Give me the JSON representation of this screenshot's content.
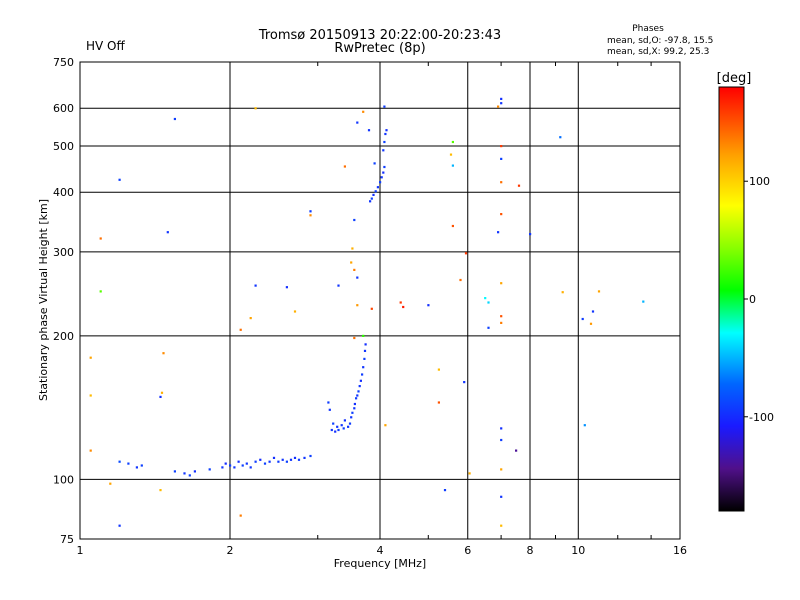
{
  "chart_data": {
    "type": "scatter",
    "title": "Tromsø 20150913 20:22:00-20:23:43",
    "subtitle": "RwPretec (8p)",
    "status_label": "HV Off",
    "status_color": "#cc0000",
    "phases": {
      "heading": "Phases",
      "line_o": "mean, sd,O: -97.8, 15.5",
      "line_x": "mean, sd,X:  99.2, 25.3"
    },
    "xlabel": "Frequency [MHz]",
    "ylabel": "Stationary phase Virtual Height [km]",
    "x_scale": "log",
    "y_scale": "log",
    "xlim": [
      1,
      16
    ],
    "ylim": [
      75,
      750
    ],
    "x_ticks": [
      {
        "v": 1,
        "label": "1"
      },
      {
        "v": 2,
        "label": "2"
      },
      {
        "v": 4,
        "label": "4"
      },
      {
        "v": 6,
        "label": "6"
      },
      {
        "v": 8,
        "label": "8"
      },
      {
        "v": 10,
        "label": "10"
      },
      {
        "v": 16,
        "label": "16"
      }
    ],
    "y_ticks": [
      {
        "v": 75,
        "label": "75"
      },
      {
        "v": 100,
        "label": "100"
      },
      {
        "v": 200,
        "label": "200"
      },
      {
        "v": 300,
        "label": "300"
      },
      {
        "v": 400,
        "label": "400"
      },
      {
        "v": 500,
        "label": "500"
      },
      {
        "v": 600,
        "label": "600"
      },
      {
        "v": 750,
        "label": "750"
      }
    ],
    "grid": true,
    "colorbar": {
      "label": "[deg]",
      "range": [
        -180,
        180
      ],
      "ticks": [
        {
          "v": 100,
          "label": "100"
        },
        {
          "v": 0,
          "label": "0"
        },
        {
          "v": -100,
          "label": "-100"
        }
      ]
    },
    "points": [
      {
        "f": 1.2,
        "h": 109,
        "p": -85
      },
      {
        "f": 1.25,
        "h": 108,
        "p": -90
      },
      {
        "f": 1.3,
        "h": 106,
        "p": -95
      },
      {
        "f": 1.55,
        "h": 104,
        "p": -90
      },
      {
        "f": 1.62,
        "h": 103,
        "p": -95
      },
      {
        "f": 1.66,
        "h": 102,
        "p": -90
      },
      {
        "f": 1.7,
        "h": 104,
        "p": -98
      },
      {
        "f": 1.82,
        "h": 105,
        "p": -90
      },
      {
        "f": 1.93,
        "h": 106,
        "p": -95
      },
      {
        "f": 1.96,
        "h": 108,
        "p": -100
      },
      {
        "f": 2.0,
        "h": 107,
        "p": -92
      },
      {
        "f": 2.04,
        "h": 106,
        "p": -95
      },
      {
        "f": 2.08,
        "h": 109,
        "p": -98
      },
      {
        "f": 2.12,
        "h": 107,
        "p": -90
      },
      {
        "f": 2.16,
        "h": 108,
        "p": -95
      },
      {
        "f": 2.2,
        "h": 106,
        "p": -95
      },
      {
        "f": 2.25,
        "h": 109,
        "p": -92
      },
      {
        "f": 2.3,
        "h": 110,
        "p": -100
      },
      {
        "f": 2.35,
        "h": 108,
        "p": -90
      },
      {
        "f": 2.4,
        "h": 109,
        "p": -95
      },
      {
        "f": 2.45,
        "h": 111,
        "p": -98
      },
      {
        "f": 2.5,
        "h": 109,
        "p": -92
      },
      {
        "f": 2.55,
        "h": 110,
        "p": -95
      },
      {
        "f": 2.6,
        "h": 109,
        "p": -90
      },
      {
        "f": 2.65,
        "h": 110,
        "p": -95
      },
      {
        "f": 2.7,
        "h": 111,
        "p": -98
      },
      {
        "f": 2.75,
        "h": 110,
        "p": -92
      },
      {
        "f": 2.82,
        "h": 111,
        "p": -95
      },
      {
        "f": 2.9,
        "h": 112,
        "p": -90
      },
      {
        "f": 3.2,
        "h": 127,
        "p": -95
      },
      {
        "f": 3.22,
        "h": 131,
        "p": -90
      },
      {
        "f": 3.25,
        "h": 126,
        "p": -98
      },
      {
        "f": 3.28,
        "h": 129,
        "p": -95
      },
      {
        "f": 3.3,
        "h": 127,
        "p": -92
      },
      {
        "f": 3.35,
        "h": 130,
        "p": -95
      },
      {
        "f": 3.38,
        "h": 128,
        "p": -90
      },
      {
        "f": 3.4,
        "h": 133,
        "p": -98
      },
      {
        "f": 3.45,
        "h": 129,
        "p": -95
      },
      {
        "f": 3.48,
        "h": 131,
        "p": -92
      },
      {
        "f": 3.5,
        "h": 135,
        "p": -95
      },
      {
        "f": 3.52,
        "h": 138,
        "p": -90
      },
      {
        "f": 3.55,
        "h": 141,
        "p": -95
      },
      {
        "f": 3.56,
        "h": 144,
        "p": -98
      },
      {
        "f": 3.58,
        "h": 148,
        "p": -92
      },
      {
        "f": 3.6,
        "h": 150,
        "p": -95
      },
      {
        "f": 3.62,
        "h": 153,
        "p": -90
      },
      {
        "f": 3.64,
        "h": 157,
        "p": -95
      },
      {
        "f": 3.66,
        "h": 161,
        "p": -98
      },
      {
        "f": 3.68,
        "h": 166,
        "p": -92
      },
      {
        "f": 3.7,
        "h": 172,
        "p": -95
      },
      {
        "f": 3.72,
        "h": 179,
        "p": -90
      },
      {
        "f": 3.73,
        "h": 186,
        "p": -95
      },
      {
        "f": 3.74,
        "h": 192,
        "p": -98
      },
      {
        "f": 3.17,
        "h": 140,
        "p": -95
      },
      {
        "f": 3.15,
        "h": 145,
        "p": -92
      },
      {
        "f": 3.82,
        "h": 383,
        "p": -95
      },
      {
        "f": 3.85,
        "h": 388,
        "p": -90
      },
      {
        "f": 3.88,
        "h": 395,
        "p": -98
      },
      {
        "f": 3.92,
        "h": 402,
        "p": -92
      },
      {
        "f": 3.96,
        "h": 410,
        "p": -95
      },
      {
        "f": 4.0,
        "h": 420,
        "p": -90
      },
      {
        "f": 4.03,
        "h": 430,
        "p": -95
      },
      {
        "f": 4.06,
        "h": 440,
        "p": -98
      },
      {
        "f": 4.08,
        "h": 452,
        "p": -92
      },
      {
        "f": 4.06,
        "h": 490,
        "p": -95
      },
      {
        "f": 4.08,
        "h": 510,
        "p": -90
      },
      {
        "f": 4.1,
        "h": 530,
        "p": -95
      },
      {
        "f": 4.12,
        "h": 540,
        "p": -98
      },
      {
        "f": 4.08,
        "h": 605,
        "p": -92
      },
      {
        "f": 3.8,
        "h": 540,
        "p": -95
      },
      {
        "f": 3.9,
        "h": 460,
        "p": -90
      },
      {
        "f": 3.6,
        "h": 560,
        "p": -95
      },
      {
        "f": 1.2,
        "h": 80,
        "p": -95
      },
      {
        "f": 1.33,
        "h": 107,
        "p": -90
      },
      {
        "f": 1.45,
        "h": 149,
        "p": -98
      },
      {
        "f": 1.55,
        "h": 570,
        "p": -92
      },
      {
        "f": 1.5,
        "h": 330,
        "p": -95
      },
      {
        "f": 1.2,
        "h": 425,
        "p": -90
      },
      {
        "f": 2.25,
        "h": 255,
        "p": -95
      },
      {
        "f": 2.6,
        "h": 253,
        "p": -98
      },
      {
        "f": 2.9,
        "h": 365,
        "p": -92
      },
      {
        "f": 3.3,
        "h": 255,
        "p": -95
      },
      {
        "f": 3.55,
        "h": 350,
        "p": -90
      },
      {
        "f": 3.6,
        "h": 265,
        "p": -95
      },
      {
        "f": 5.0,
        "h": 232,
        "p": -98
      },
      {
        "f": 5.4,
        "h": 95,
        "p": -92
      },
      {
        "f": 5.9,
        "h": 160,
        "p": -95
      },
      {
        "f": 6.6,
        "h": 208,
        "p": -90
      },
      {
        "f": 6.9,
        "h": 330,
        "p": -95
      },
      {
        "f": 7.0,
        "h": 128,
        "p": -98
      },
      {
        "f": 7.0,
        "h": 121,
        "p": -92
      },
      {
        "f": 7.0,
        "h": 92,
        "p": -95
      },
      {
        "f": 7.0,
        "h": 470,
        "p": -90
      },
      {
        "f": 7.0,
        "h": 615,
        "p": -95
      },
      {
        "f": 7.0,
        "h": 628,
        "p": -98
      },
      {
        "f": 7.5,
        "h": 115,
        "p": -140
      },
      {
        "f": 7.6,
        "h": 413,
        "p": 160
      },
      {
        "f": 8.0,
        "h": 327,
        "p": -95
      },
      {
        "f": 9.2,
        "h": 522,
        "p": -70
      },
      {
        "f": 10.3,
        "h": 130,
        "p": -60
      },
      {
        "f": 10.2,
        "h": 217,
        "p": -92
      },
      {
        "f": 10.7,
        "h": 225,
        "p": -95
      },
      {
        "f": 6.6,
        "h": 235,
        "p": -40
      },
      {
        "f": 13.5,
        "h": 236,
        "p": -50
      },
      {
        "f": 1.05,
        "h": 180,
        "p": 120
      },
      {
        "f": 1.05,
        "h": 150,
        "p": 110
      },
      {
        "f": 1.05,
        "h": 115,
        "p": 130
      },
      {
        "f": 1.1,
        "h": 320,
        "p": 140
      },
      {
        "f": 1.15,
        "h": 98,
        "p": 120
      },
      {
        "f": 1.45,
        "h": 95,
        "p": 110
      },
      {
        "f": 1.47,
        "h": 184,
        "p": 130
      },
      {
        "f": 1.46,
        "h": 152,
        "p": 115
      },
      {
        "f": 2.1,
        "h": 206,
        "p": 140
      },
      {
        "f": 2.2,
        "h": 218,
        "p": 120
      },
      {
        "f": 2.25,
        "h": 600,
        "p": 110
      },
      {
        "f": 2.1,
        "h": 84,
        "p": 135
      },
      {
        "f": 2.7,
        "h": 225,
        "p": 115
      },
      {
        "f": 2.9,
        "h": 358,
        "p": 130
      },
      {
        "f": 3.4,
        "h": 453,
        "p": 140
      },
      {
        "f": 3.5,
        "h": 285,
        "p": 120
      },
      {
        "f": 3.52,
        "h": 305,
        "p": 115
      },
      {
        "f": 3.55,
        "h": 275,
        "p": 135
      },
      {
        "f": 3.6,
        "h": 232,
        "p": 125
      },
      {
        "f": 3.55,
        "h": 198,
        "p": 140
      },
      {
        "f": 3.7,
        "h": 590,
        "p": 130
      },
      {
        "f": 3.85,
        "h": 228,
        "p": 155
      },
      {
        "f": 4.1,
        "h": 130,
        "p": 120
      },
      {
        "f": 4.4,
        "h": 235,
        "p": 160
      },
      {
        "f": 4.45,
        "h": 230,
        "p": 170
      },
      {
        "f": 5.25,
        "h": 145,
        "p": 150
      },
      {
        "f": 5.25,
        "h": 170,
        "p": 110
      },
      {
        "f": 5.55,
        "h": 480,
        "p": 110
      },
      {
        "f": 5.6,
        "h": 340,
        "p": 150
      },
      {
        "f": 5.8,
        "h": 262,
        "p": 140
      },
      {
        "f": 5.95,
        "h": 298,
        "p": 160
      },
      {
        "f": 6.05,
        "h": 103,
        "p": 115
      },
      {
        "f": 6.9,
        "h": 605,
        "p": 130
      },
      {
        "f": 7.0,
        "h": 500,
        "p": 160
      },
      {
        "f": 7.0,
        "h": 420,
        "p": 140
      },
      {
        "f": 7.0,
        "h": 360,
        "p": 150
      },
      {
        "f": 7.0,
        "h": 258,
        "p": 120
      },
      {
        "f": 7.0,
        "h": 220,
        "p": 150
      },
      {
        "f": 7.0,
        "h": 213,
        "p": 135
      },
      {
        "f": 7.0,
        "h": 105,
        "p": 120
      },
      {
        "f": 7.0,
        "h": 80,
        "p": 110
      },
      {
        "f": 9.3,
        "h": 247,
        "p": 115
      },
      {
        "f": 10.6,
        "h": 212,
        "p": 125
      },
      {
        "f": 11.0,
        "h": 248,
        "p": 120
      },
      {
        "f": 5.6,
        "h": 510,
        "p": 30
      },
      {
        "f": 5.6,
        "h": 455,
        "p": -50
      },
      {
        "f": 3.7,
        "h": 200,
        "p": 20
      },
      {
        "f": 1.1,
        "h": 248,
        "p": 30
      },
      {
        "f": 6.5,
        "h": 240,
        "p": -30
      }
    ]
  }
}
